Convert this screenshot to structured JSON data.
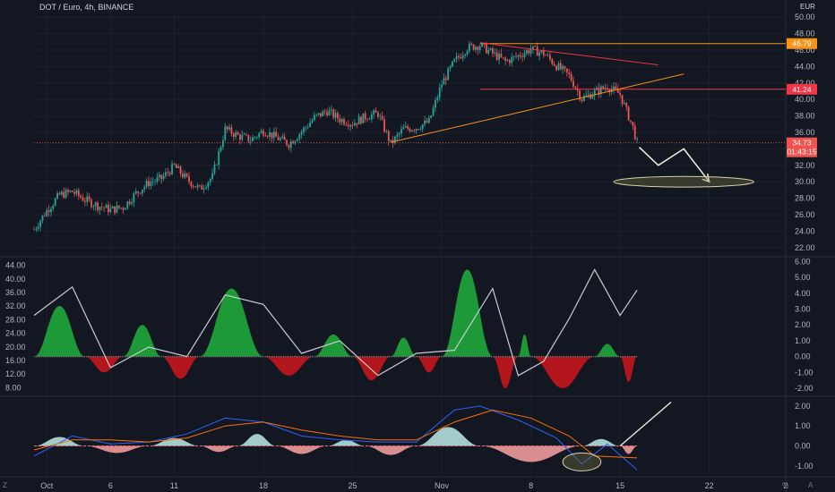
{
  "header": {
    "title": "DOT / Euro, 4h, BINANCE",
    "currency": "EUR"
  },
  "colors": {
    "bg": "#131722",
    "grid": "#1e222d",
    "up": "#26a69a",
    "down": "#ef5350",
    "orange": "#f7931a",
    "red": "#f23645",
    "text": "#b2b5be"
  },
  "chart_data": [
    {
      "type": "candlestick",
      "title": "DOT / Euro, 4h, BINANCE",
      "y_unit": "EUR",
      "ylim": [
        21,
        51
      ],
      "xlim": [
        "2021-09-30",
        "2021-11-28"
      ],
      "x_ticks": [
        {
          "label": "Oct",
          "date": "2021-10-01"
        },
        {
          "label": "6",
          "date": "2021-10-06"
        },
        {
          "label": "11",
          "date": "2021-10-11"
        },
        {
          "label": "18",
          "date": "2021-10-18"
        },
        {
          "label": "25",
          "date": "2021-10-25"
        },
        {
          "label": "Nov",
          "date": "2021-11-01"
        },
        {
          "label": "8",
          "date": "2021-11-08"
        },
        {
          "label": "15",
          "date": "2021-11-15"
        },
        {
          "label": "22",
          "date": "2021-11-22"
        },
        {
          "label": "2",
          "date": "2021-11-28"
        }
      ],
      "y_ticks": [
        "50.00",
        "48.00",
        "46.00",
        "44.00",
        "42.00",
        "40.00",
        "38.00",
        "36.00",
        "34.00",
        "32.00",
        "30.00",
        "28.00",
        "26.00",
        "24.00",
        "22.00"
      ],
      "y_tick_values": [
        50,
        48,
        46,
        44,
        42,
        40,
        38,
        36,
        34,
        32,
        30,
        28,
        26,
        24,
        22
      ],
      "price_path": [
        [
          "2021-09-30",
          24.2
        ],
        [
          "2021-10-01",
          26.5
        ],
        [
          "2021-10-02",
          28.4
        ],
        [
          "2021-10-03",
          28.8
        ],
        [
          "2021-10-04",
          27.8
        ],
        [
          "2021-10-05",
          27.1
        ],
        [
          "2021-10-06",
          26.6
        ],
        [
          "2021-10-07",
          26.9
        ],
        [
          "2021-10-08",
          28.6
        ],
        [
          "2021-10-09",
          29.9
        ],
        [
          "2021-10-10",
          30.4
        ],
        [
          "2021-10-11",
          31.9
        ],
        [
          "2021-10-12",
          30.3
        ],
        [
          "2021-10-13",
          29.1
        ],
        [
          "2021-10-14",
          30.6
        ],
        [
          "2021-10-15",
          36.4
        ],
        [
          "2021-10-16",
          35.6
        ],
        [
          "2021-10-17",
          35.1
        ],
        [
          "2021-10-18",
          36.2
        ],
        [
          "2021-10-19",
          35.4
        ],
        [
          "2021-10-20",
          34.6
        ],
        [
          "2021-10-21",
          36.1
        ],
        [
          "2021-10-22",
          37.8
        ],
        [
          "2021-10-23",
          38.6
        ],
        [
          "2021-10-24",
          37.6
        ],
        [
          "2021-10-25",
          37.1
        ],
        [
          "2021-10-26",
          37.9
        ],
        [
          "2021-10-27",
          38.3
        ],
        [
          "2021-10-28",
          34.6
        ],
        [
          "2021-10-29",
          36.4
        ],
        [
          "2021-10-30",
          36.6
        ],
        [
          "2021-10-31",
          37.3
        ],
        [
          "2021-11-01",
          41.9
        ],
        [
          "2021-11-02",
          44.6
        ],
        [
          "2021-11-03",
          46.3
        ],
        [
          "2021-11-04",
          46.6
        ],
        [
          "2021-11-05",
          45.6
        ],
        [
          "2021-11-06",
          44.6
        ],
        [
          "2021-11-07",
          45.3
        ],
        [
          "2021-11-08",
          46.1
        ],
        [
          "2021-11-09",
          45.6
        ],
        [
          "2021-11-10",
          44.1
        ],
        [
          "2021-11-11",
          42.9
        ],
        [
          "2021-11-12",
          40.1
        ],
        [
          "2021-11-13",
          40.9
        ],
        [
          "2021-11-14",
          41.6
        ],
        [
          "2021-11-15",
          40.6
        ],
        [
          "2021-11-16",
          36.6
        ],
        [
          "2021-11-16T08:00",
          34.73
        ]
      ],
      "last_price": {
        "value": 34.73,
        "label": "34.73",
        "countdown": "01:43:15"
      },
      "horizontal_levels": [
        {
          "value": 46.79,
          "label": "46.79",
          "color": "#f7931a"
        },
        {
          "value": 41.24,
          "label": "41.24",
          "color": "#f23645"
        }
      ],
      "trend_lines": [
        {
          "from": [
            "2021-10-28",
            34.8
          ],
          "to": [
            "2021-11-20",
            43.1
          ],
          "color": "#f7931a"
        },
        {
          "from": [
            "2021-11-04",
            46.9
          ],
          "to": [
            "2021-11-18",
            44.2
          ],
          "color": "#f23645"
        }
      ],
      "projection_path": [
        [
          "2021-11-16T12:00",
          34.2
        ],
        [
          "2021-11-18",
          32.0
        ],
        [
          "2021-11-20",
          34.0
        ],
        [
          "2021-11-22",
          30.0
        ]
      ],
      "target_ellipse": {
        "center": [
          "2021-11-20",
          30.0
        ],
        "rx_days": 5.5,
        "ry_value": 0.65
      }
    },
    {
      "type": "oscillator",
      "left_ticks": [
        "44.00",
        "40.00",
        "36.00",
        "32.00",
        "28.00",
        "24.00",
        "20.00",
        "16.00",
        "12.00",
        "8.00"
      ],
      "left_tick_values": [
        44,
        40,
        36,
        32,
        28,
        24,
        20,
        16,
        12,
        8
      ],
      "right_ticks": [
        "6.00",
        "5.00",
        "4.00",
        "3.00",
        "2.00",
        "1.00",
        "0.00",
        "-1.00",
        "-2.00"
      ],
      "right_tick_values": [
        6,
        5,
        4,
        3,
        2,
        1,
        0,
        -1,
        -2
      ],
      "ylim_right": [
        -2.4,
        6.2
      ],
      "humps": [
        [
          "2021-09-30",
          "2021-10-04",
          3.2
        ],
        [
          "2021-10-04",
          "2021-10-07",
          -1.0
        ],
        [
          "2021-10-07",
          "2021-10-10",
          2.0
        ],
        [
          "2021-10-10",
          "2021-10-13",
          -1.4
        ],
        [
          "2021-10-13",
          "2021-10-18",
          4.3
        ],
        [
          "2021-10-18",
          "2021-10-22",
          -1.2
        ],
        [
          "2021-10-22",
          "2021-10-25",
          1.4
        ],
        [
          "2021-10-25",
          "2021-10-28",
          -1.5
        ],
        [
          "2021-10-28",
          "2021-10-30",
          1.2
        ],
        [
          "2021-10-30",
          "2021-11-01",
          -1.0
        ],
        [
          "2021-11-01",
          "2021-11-05",
          5.5
        ],
        [
          "2021-11-05",
          "2021-11-07",
          -2.0
        ],
        [
          "2021-11-07",
          "2021-11-08",
          1.4
        ],
        [
          "2021-11-08",
          "2021-11-13",
          -2.0
        ],
        [
          "2021-11-13",
          "2021-11-15",
          0.8
        ],
        [
          "2021-11-15",
          "2021-11-16T08:00",
          -1.6
        ]
      ],
      "line_path": [
        [
          "2021-09-30",
          2.6
        ],
        [
          "2021-10-03",
          4.4
        ],
        [
          "2021-10-06",
          -0.7
        ],
        [
          "2021-10-09",
          0.6
        ],
        [
          "2021-10-12",
          0.0
        ],
        [
          "2021-10-15",
          3.9
        ],
        [
          "2021-10-18",
          3.3
        ],
        [
          "2021-10-21",
          0.2
        ],
        [
          "2021-10-24",
          1.0
        ],
        [
          "2021-10-27",
          -1.2
        ],
        [
          "2021-10-30",
          0.2
        ],
        [
          "2021-11-02",
          0.4
        ],
        [
          "2021-11-05",
          4.3
        ],
        [
          "2021-11-07",
          -1.2
        ],
        [
          "2021-11-09",
          -0.3
        ],
        [
          "2021-11-11",
          2.4
        ],
        [
          "2021-11-13",
          5.5
        ],
        [
          "2021-11-15",
          2.6
        ],
        [
          "2021-11-16T08:00",
          4.2
        ]
      ]
    },
    {
      "type": "macd",
      "right_ticks": [
        "2.00",
        "1.00",
        "0.00",
        "-1.00"
      ],
      "right_tick_values": [
        2,
        1,
        0,
        -1
      ],
      "ylim": [
        -1.5,
        2.4
      ],
      "histogram_humps": [
        [
          "2021-09-30",
          "2021-10-04",
          0.45
        ],
        [
          "2021-10-04",
          "2021-10-09",
          -0.35
        ],
        [
          "2021-10-09",
          "2021-10-13",
          0.4
        ],
        [
          "2021-10-13",
          "2021-10-16",
          -0.3
        ],
        [
          "2021-10-16",
          "2021-10-19",
          0.6
        ],
        [
          "2021-10-19",
          "2021-10-23",
          -0.4
        ],
        [
          "2021-10-23",
          "2021-10-26",
          0.3
        ],
        [
          "2021-10-26",
          "2021-10-30",
          -0.45
        ],
        [
          "2021-10-30",
          "2021-11-04",
          0.95
        ],
        [
          "2021-11-04",
          "2021-11-12",
          -0.8
        ],
        [
          "2021-11-12",
          "2021-11-15",
          0.35
        ],
        [
          "2021-11-15",
          "2021-11-16T08:00",
          -0.4
        ]
      ],
      "macd_line": [
        [
          "2021-09-30",
          -0.5
        ],
        [
          "2021-10-03",
          0.5
        ],
        [
          "2021-10-06",
          0.1
        ],
        [
          "2021-10-09",
          0.2
        ],
        [
          "2021-10-12",
          0.6
        ],
        [
          "2021-10-15",
          1.4
        ],
        [
          "2021-10-18",
          1.2
        ],
        [
          "2021-10-21",
          0.5
        ],
        [
          "2021-10-24",
          0.3
        ],
        [
          "2021-10-27",
          0.2
        ],
        [
          "2021-10-30",
          0.2
        ],
        [
          "2021-11-02",
          1.8
        ],
        [
          "2021-11-04",
          2.0
        ],
        [
          "2021-11-07",
          1.3
        ],
        [
          "2021-11-10",
          0.4
        ],
        [
          "2021-11-12",
          -0.9
        ],
        [
          "2021-11-14",
          0.1
        ],
        [
          "2021-11-16T08:00",
          -1.2
        ]
      ],
      "signal_line": [
        [
          "2021-09-30",
          -0.2
        ],
        [
          "2021-10-03",
          0.3
        ],
        [
          "2021-10-06",
          0.3
        ],
        [
          "2021-10-09",
          0.2
        ],
        [
          "2021-10-12",
          0.4
        ],
        [
          "2021-10-15",
          1.0
        ],
        [
          "2021-10-18",
          1.2
        ],
        [
          "2021-10-21",
          0.8
        ],
        [
          "2021-10-24",
          0.5
        ],
        [
          "2021-10-27",
          0.3
        ],
        [
          "2021-10-30",
          0.3
        ],
        [
          "2021-11-02",
          1.2
        ],
        [
          "2021-11-05",
          1.8
        ],
        [
          "2021-11-08",
          1.4
        ],
        [
          "2021-11-11",
          0.5
        ],
        [
          "2021-11-13",
          -0.5
        ],
        [
          "2021-11-16T08:00",
          -0.6
        ]
      ],
      "highlight_ellipse": {
        "center": [
          "2021-11-12",
          -0.8
        ],
        "rx_days": 1.5,
        "ry_value": 0.45
      },
      "annotation_arrow": [
        [
          "2021-11-15",
          0.0
        ],
        [
          "2021-11-19",
          2.2
        ]
      ]
    }
  ]
}
